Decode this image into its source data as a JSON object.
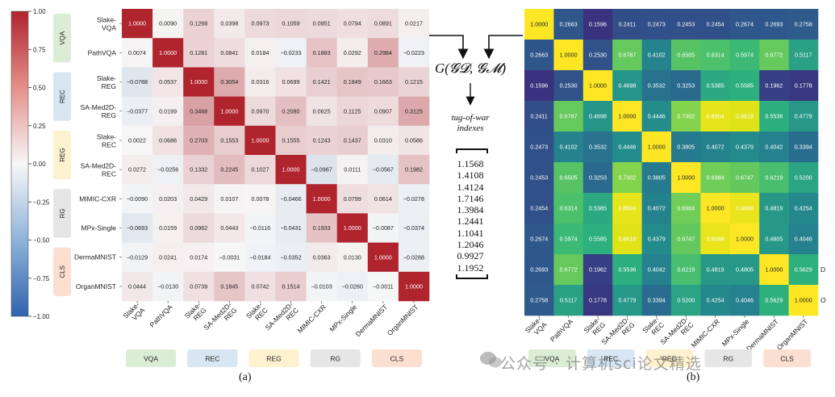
{
  "chart_data": [
    {
      "type": "heatmap",
      "panel_label": "(a)",
      "colorbar": {
        "min": -1.0,
        "max": 1.0,
        "ticks": [
          "1.00",
          "0.75",
          "0.50",
          "0.25",
          "0.00",
          "−0.25",
          "−0.50",
          "−0.75",
          "−1.00"
        ],
        "low_color": "#2f63ad",
        "mid_color": "#f7f7f7",
        "high_color": "#b0242e"
      },
      "row_labels": [
        [
          "Slake-",
          "VQA"
        ],
        [
          "PathVQA"
        ],
        [
          "Slake-",
          "REG"
        ],
        [
          "SA-Med2D-",
          "REG"
        ],
        [
          "Slake-",
          "REC"
        ],
        [
          "SA-Med2D-",
          "REC"
        ],
        [
          "MIMIC-CXR"
        ],
        [
          "MPx-Single"
        ],
        [
          "DermaMNIST"
        ],
        [
          "OrganMNIST"
        ]
      ],
      "col_labels": [
        [
          "Slake-",
          "VQA"
        ],
        [
          "PathVQA"
        ],
        [
          "Slake-",
          "REG"
        ],
        [
          "SA-Med2D-",
          "REG"
        ],
        [
          "Slake-",
          "REC"
        ],
        [
          "SA-Med2D-",
          "REC"
        ],
        [
          "MIMIC-CXR"
        ],
        [
          "MPx-Single"
        ],
        [
          "DermaMNIST"
        ],
        [
          "OrganMNIST"
        ]
      ],
      "groups": [
        {
          "name": "VQA",
          "color": "#dcedd5"
        },
        {
          "name": "REC",
          "color": "#d8e6f3"
        },
        {
          "name": "REG",
          "color": "#fdf1cf"
        },
        {
          "name": "RG",
          "color": "#e6e6e6"
        },
        {
          "name": "CLS",
          "color": "#fbe0d2"
        }
      ],
      "left_groups_order": [
        "VQA",
        "REC",
        "REG",
        "RG",
        "CLS"
      ],
      "bottom_groups_order": [
        "VQA",
        "REC",
        "REG",
        "RG",
        "CLS"
      ],
      "values": [
        [
          "1.0000",
          "0.0090",
          "0.1268",
          "0.0398",
          "0.0973",
          "0.1059",
          "0.0951",
          "0.0794",
          "0.0891",
          "0.0217"
        ],
        [
          "0.0074",
          "1.0000",
          "0.1281",
          "0.0841",
          "0.0184",
          "−0.0233",
          "0.1883",
          "0.0292",
          "0.2984",
          "−0.0223"
        ],
        [
          "−0.0788",
          "0.0537",
          "1.0000",
          "0.3054",
          "0.0316",
          "0.0699",
          "0.1421",
          "0.1849",
          "0.1663",
          "0.1215"
        ],
        [
          "−0.0377",
          "0.0199",
          "0.3468",
          "1.0000",
          "0.0970",
          "0.2080",
          "0.0625",
          "0.1125",
          "0.0907",
          "0.3125"
        ],
        [
          "0.0022",
          "0.0686",
          "0.2703",
          "0.1553",
          "1.0000",
          "0.1555",
          "0.1243",
          "0.1437",
          "0.0310",
          "0.0586"
        ],
        [
          "0.0272",
          "−0.0256",
          "0.1332",
          "0.2245",
          "0.1027",
          "1.0000",
          "−0.0967",
          "0.0111",
          "−0.0567",
          "0.1982"
        ],
        [
          "−0.0090",
          "0.0203",
          "0.0429",
          "0.0107",
          "0.0078",
          "−0.0466",
          "1.0000",
          "0.0799",
          "0.0614",
          "−0.0278"
        ],
        [
          "−0.0693",
          "0.0159",
          "0.0962",
          "0.0443",
          "−0.0116",
          "−0.0431",
          "0.1933",
          "1.0000",
          "−0.0087",
          "−0.0374"
        ],
        [
          "−0.0129",
          "0.0241",
          "0.0174",
          "−0.0031",
          "−0.0184",
          "−0.0352",
          "0.0363",
          "0.0130",
          "1.0000",
          "−0.0288"
        ],
        [
          "0.0444",
          "−0.0130",
          "0.0739",
          "0.1845",
          "0.0742",
          "0.1514",
          "−0.0103",
          "−0.0260",
          "−0.0011",
          "1.0000"
        ]
      ]
    },
    {
      "type": "heatmap",
      "panel_label": "(b)",
      "col_labels": [
        [
          "Slake-",
          "VQA"
        ],
        [
          "PathVQA"
        ],
        [
          "Slake-",
          "REG"
        ],
        [
          "SA-Med2D-",
          "REG"
        ],
        [
          "Slake-",
          "REC"
        ],
        [
          "SA-Med2D-",
          "REC"
        ],
        [
          "MIMIC-CXR"
        ],
        [
          "MPx-Single"
        ],
        [
          "DermaMNIST"
        ],
        [
          "OrganMNIST"
        ]
      ],
      "bottom_groups_order": [
        "VQA",
        "REC",
        "REG",
        "RG",
        "CLS"
      ],
      "right_edge_letters": [
        "D",
        "O"
      ],
      "colormap": [
        "#3b2f7d",
        "#2c5f8e",
        "#238a8d",
        "#2fb47c",
        "#7ad151",
        "#dfe318",
        "#fde725"
      ],
      "values": [
        [
          "1.0000",
          "0.2663",
          "0.1596",
          "0.2411",
          "0.2473",
          "0.2453",
          "0.2454",
          "0.2674",
          "0.2693",
          "0.2758"
        ],
        [
          "0.2663",
          "1.0000",
          "0.2530",
          "0.6787",
          "0.4102",
          "0.6505",
          "0.6314",
          "0.5974",
          "0.6772",
          "0.5117"
        ],
        [
          "0.1596",
          "0.2530",
          "1.0000",
          "0.4698",
          "0.3532",
          "0.3253",
          "0.5385",
          "0.5585",
          "0.1962",
          "0.1778"
        ],
        [
          "0.2411",
          "0.6787",
          "0.4698",
          "1.0000",
          "0.4446",
          "0.7302",
          "0.8904",
          "0.8618",
          "0.5536",
          "0.4779"
        ],
        [
          "0.2473",
          "0.4102",
          "0.3532",
          "0.4446",
          "1.0000",
          "0.3805",
          "0.4072",
          "0.4379",
          "0.4042",
          "0.3394"
        ],
        [
          "0.2453",
          "0.6505",
          "0.3253",
          "0.7302",
          "0.3805",
          "1.0000",
          "0.6984",
          "0.6747",
          "0.6219",
          "0.5200"
        ],
        [
          "0.2454",
          "0.6314",
          "0.5385",
          "0.8904",
          "0.4072",
          "0.6984",
          "1.0000",
          "0.9068",
          "0.4819",
          "0.4254"
        ],
        [
          "0.2674",
          "0.5974",
          "0.5585",
          "0.8618",
          "0.4379",
          "0.6747",
          "0.9068",
          "1.0000",
          "0.4805",
          "0.4046"
        ],
        [
          "0.2693",
          "0.6772",
          "0.1962",
          "0.5536",
          "0.4042",
          "0.6219",
          "0.4819",
          "0.4805",
          "1.0000",
          "0.5629"
        ],
        [
          "0.2758",
          "0.5117",
          "0.1778",
          "0.4779",
          "0.3394",
          "0.5200",
          "0.4254",
          "0.4046",
          "0.5629",
          "1.0000"
        ]
      ]
    }
  ],
  "middle": {
    "formula": "G(𝓖𝓓, 𝓖𝓜)",
    "tug_title": [
      "tug-of-war",
      "indexes"
    ],
    "tug_values": [
      "1.1568",
      "1.4108",
      "1.4124",
      "1.7146",
      "1.3984",
      "1.2441",
      "1.1041",
      "1.2046",
      "0.9927",
      "1.1952"
    ]
  },
  "watermark": "公众号 · 计算机sci论文精选"
}
